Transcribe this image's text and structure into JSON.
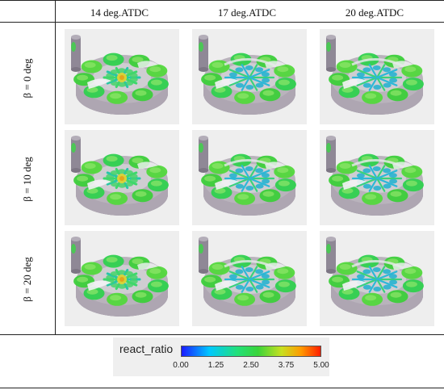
{
  "columns": [
    "14 deg.ATDC",
    "17 deg.ATDC",
    "20 deg.ATDC"
  ],
  "rows": [
    "β = 0 deg",
    "β = 10 deg",
    "β = 20 deg"
  ],
  "legend": {
    "title": "react_ratio",
    "ticks": [
      "0.00",
      "1.25",
      "2.50",
      "3.75",
      "5.00"
    ]
  }
}
